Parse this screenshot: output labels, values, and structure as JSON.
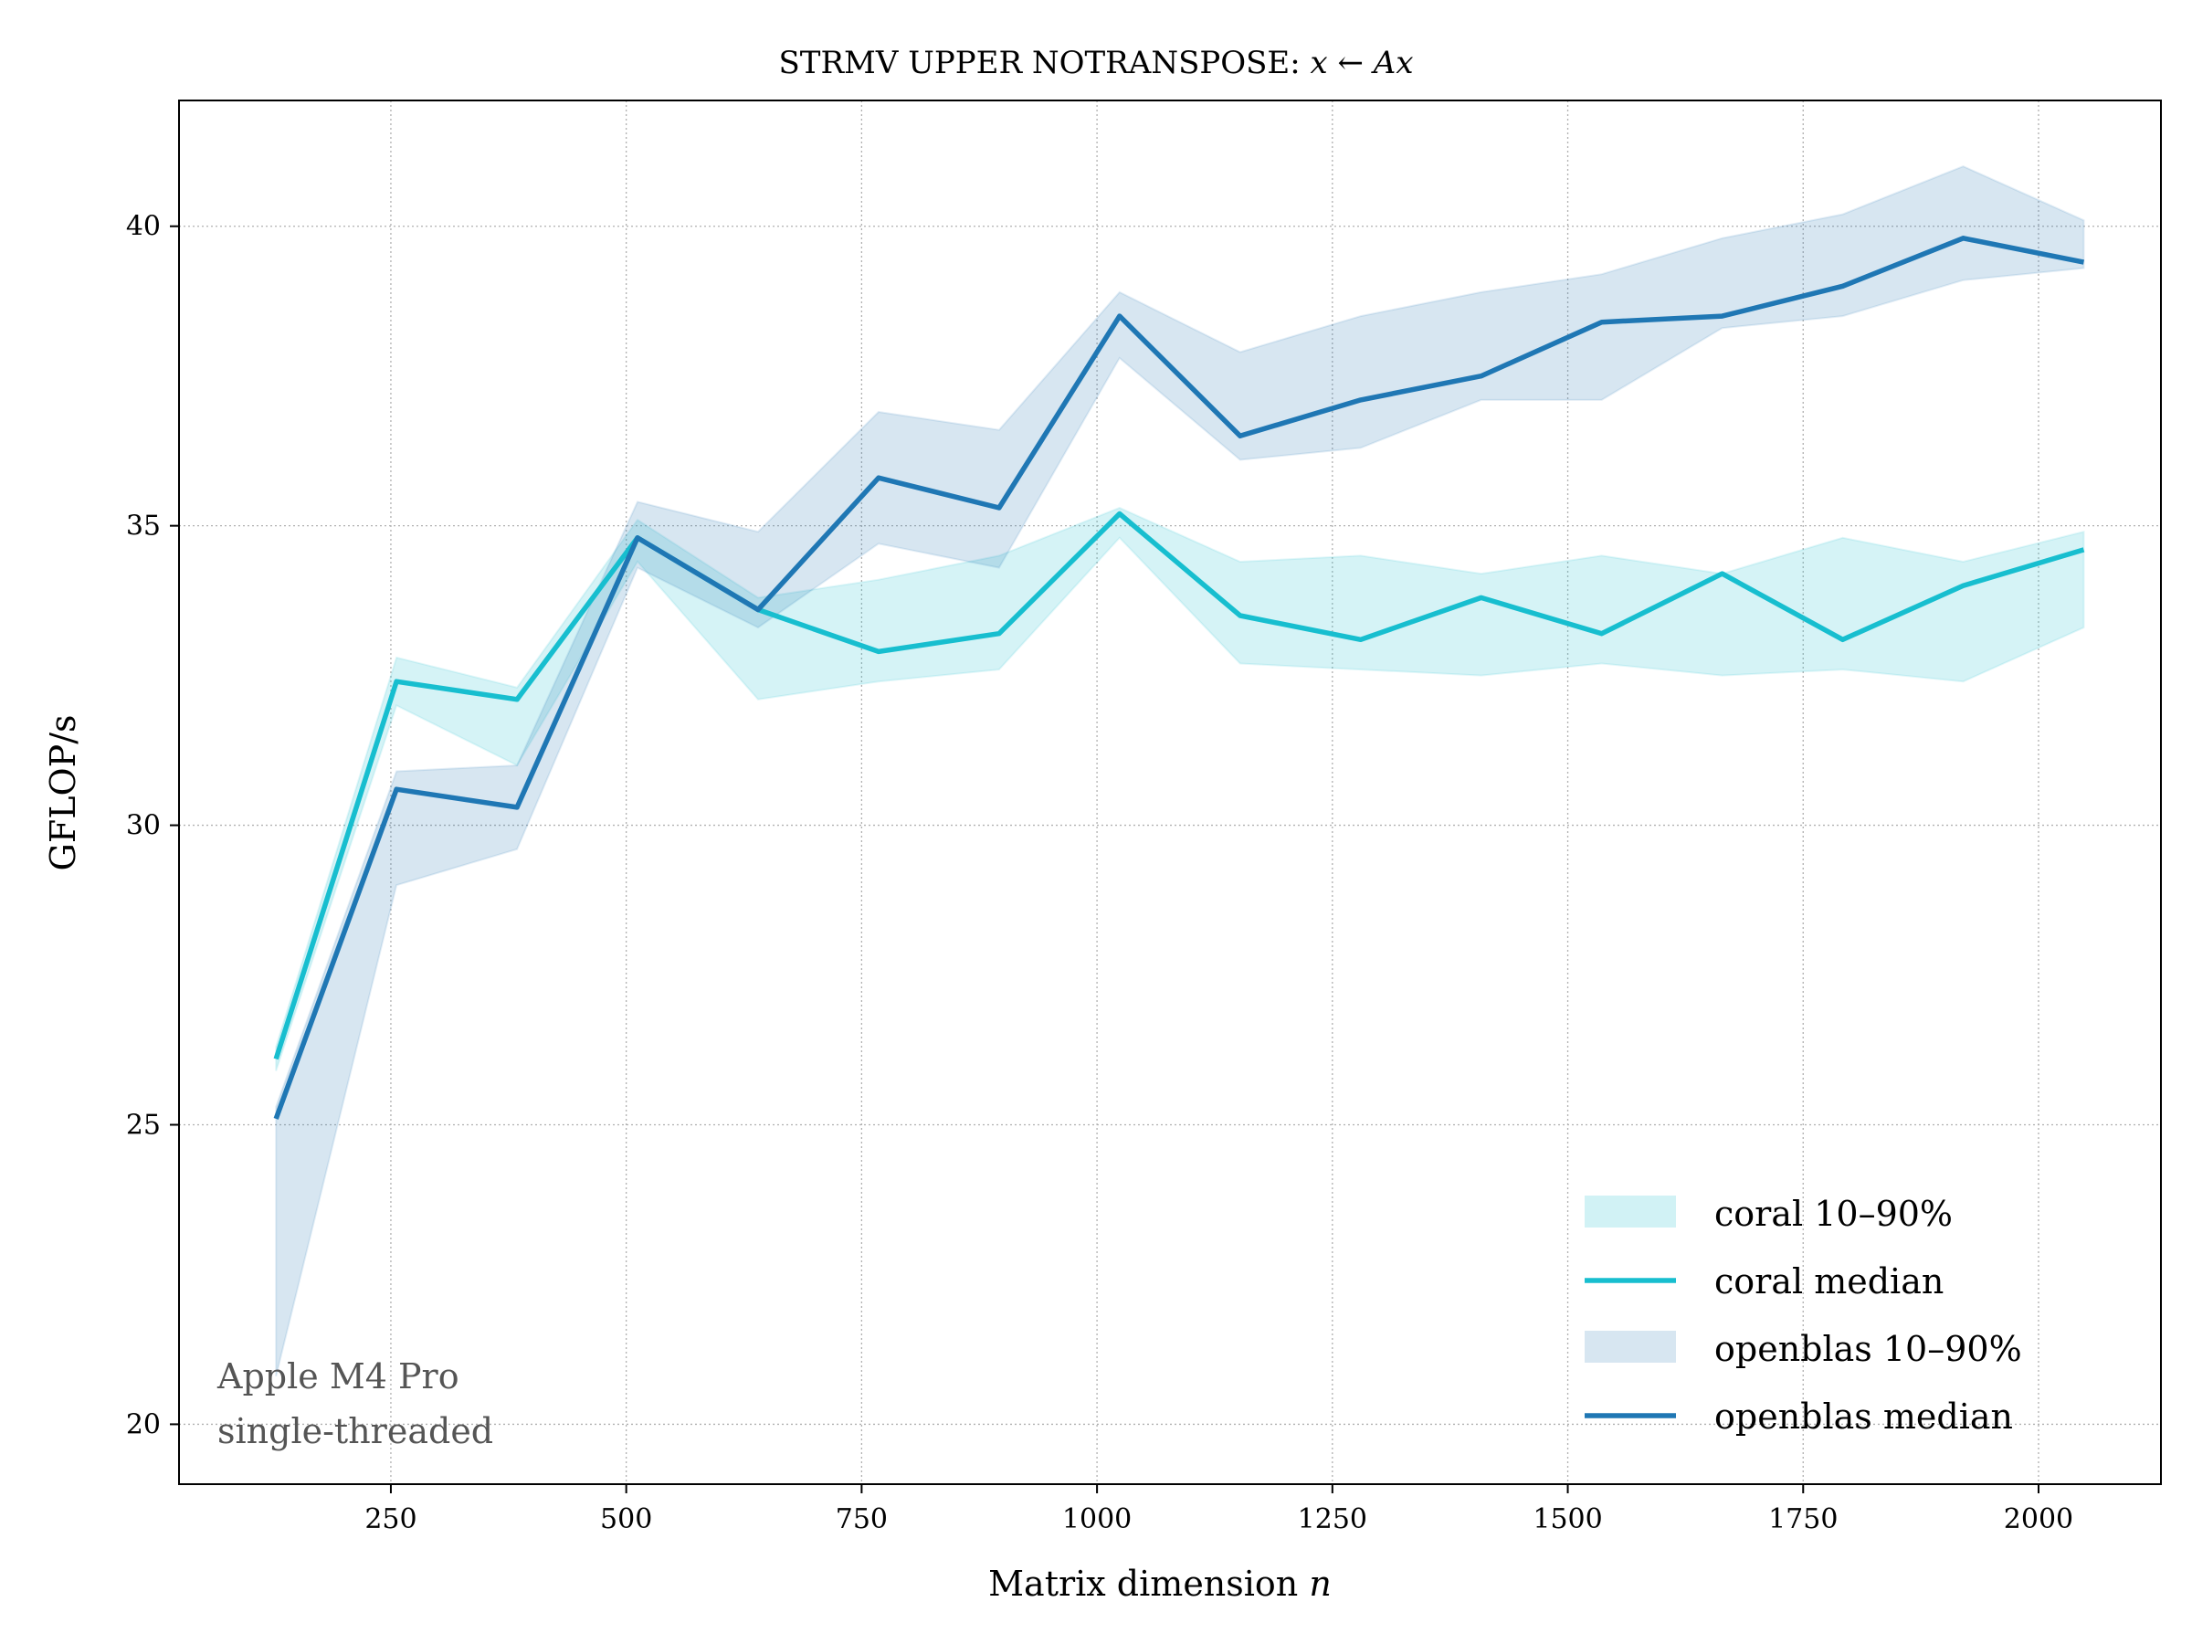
{
  "chart_data": {
    "type": "line",
    "title": "STRMV UPPER NOTRANSPOSE: ",
    "title_math": "x ← Ax",
    "xlabel": "Matrix dimension ",
    "xlabel_math": "n",
    "ylabel": "GFLOP/s",
    "xlim": [
      25,
      2130
    ],
    "ylim": [
      19.0,
      42.1
    ],
    "xticks": [
      250,
      500,
      750,
      1000,
      1250,
      1500,
      1750,
      2000
    ],
    "yticks": [
      20,
      25,
      30,
      35,
      40
    ],
    "grid": true,
    "legend_position": "bottom-right",
    "x": [
      128,
      256,
      384,
      512,
      640,
      768,
      896,
      1024,
      1152,
      1280,
      1408,
      1536,
      1664,
      1792,
      1920,
      2048
    ],
    "series": [
      {
        "name": "coral median",
        "color": "#17becf",
        "values": [
          26.1,
          32.4,
          32.1,
          34.8,
          33.6,
          32.9,
          33.2,
          35.2,
          33.5,
          33.1,
          33.8,
          33.2,
          34.2,
          33.1,
          34.0,
          34.6
        ]
      },
      {
        "name": "openblas median",
        "color": "#1f77b4",
        "values": [
          25.1,
          30.6,
          30.3,
          34.8,
          33.6,
          35.8,
          35.3,
          38.5,
          36.5,
          37.1,
          37.5,
          38.4,
          38.5,
          39.0,
          39.8,
          39.4
        ]
      }
    ],
    "bands": [
      {
        "name": "coral 10–90%",
        "color": "#17becf",
        "low": [
          25.9,
          32.0,
          31.0,
          34.4,
          32.1,
          32.4,
          32.6,
          34.8,
          32.7,
          32.6,
          32.5,
          32.7,
          32.5,
          32.6,
          32.4,
          33.3
        ],
        "high": [
          26.3,
          32.8,
          32.3,
          35.1,
          33.8,
          34.1,
          34.5,
          35.3,
          34.4,
          34.5,
          34.2,
          34.5,
          34.2,
          34.8,
          34.4,
          34.9
        ]
      },
      {
        "name": "openblas 10–90%",
        "color": "#1f77b4",
        "low": [
          20.8,
          29.0,
          29.6,
          34.3,
          33.3,
          34.7,
          34.3,
          37.8,
          36.1,
          36.3,
          37.1,
          37.1,
          38.3,
          38.5,
          39.1,
          39.3
        ],
        "high": [
          25.3,
          30.9,
          31.0,
          35.4,
          34.9,
          36.9,
          36.6,
          38.9,
          37.9,
          38.5,
          38.9,
          39.2,
          39.8,
          40.2,
          41.0,
          40.1
        ]
      }
    ],
    "legend": [
      "coral 10–90%",
      "coral median",
      "openblas 10–90%",
      "openblas median"
    ],
    "annotation_lines": [
      "Apple M4 Pro",
      "single-threaded"
    ]
  }
}
